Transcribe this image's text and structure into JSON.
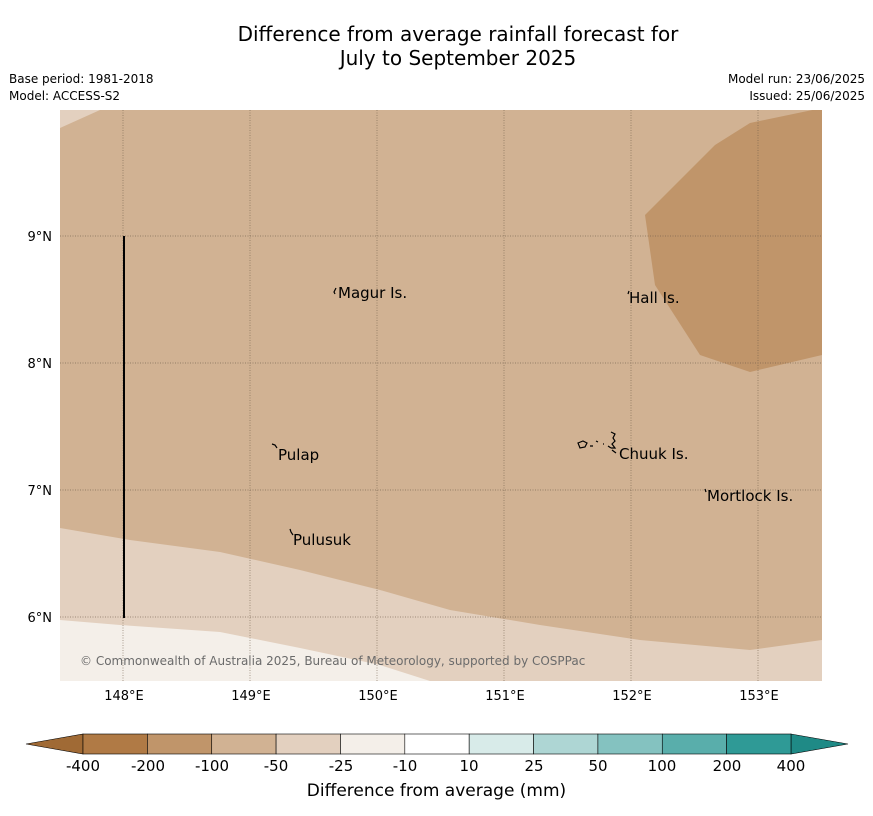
{
  "title_line1": "Difference from average rainfall forecast for",
  "title_line2": "July to September 2025",
  "meta": {
    "base_period": "Base period: 1981-2018",
    "model": "Model: ACCESS-S2",
    "model_run": "Model run: 23/06/2025",
    "issued": "Issued: 25/06/2025"
  },
  "axes": {
    "lon_ticks": [
      "148°E",
      "149°E",
      "150°E",
      "151°E",
      "152°E",
      "153°E"
    ],
    "lat_ticks": [
      "9°N",
      "8°N",
      "7°N",
      "6°N"
    ]
  },
  "places": {
    "magur": "Magur Is.",
    "hall": "Hall Is.",
    "pulap": "Pulap",
    "chuuk": "Chuuk Is.",
    "mortlock": "Mortlock Is.",
    "pulusuk": "Pulusuk"
  },
  "copyright": "© Commonwealth of Australia 2025, Bureau of Meteorology, supported by COSPPac",
  "colorbar": {
    "ticks": [
      "-400",
      "-200",
      "-100",
      "-50",
      "-25",
      "-10",
      "10",
      "25",
      "50",
      "100",
      "200",
      "400"
    ],
    "colors": [
      "#b07a45",
      "#c0956a",
      "#d1b293",
      "#e3d0bf",
      "#f4efe9",
      "#ffffff",
      "#d8ebe9",
      "#aed6d4",
      "#84c2c0",
      "#59aeab",
      "#2f9a96"
    ],
    "under_color": "#a06a35",
    "over_color": "#1f8a86",
    "label": "Difference from average (mm)"
  },
  "colors": {
    "band_minus_200": "#c0956a",
    "band_minus_100": "#d1b293",
    "band_minus_50": "#e3d0bf",
    "band_minus_25": "#f4efe9"
  }
}
